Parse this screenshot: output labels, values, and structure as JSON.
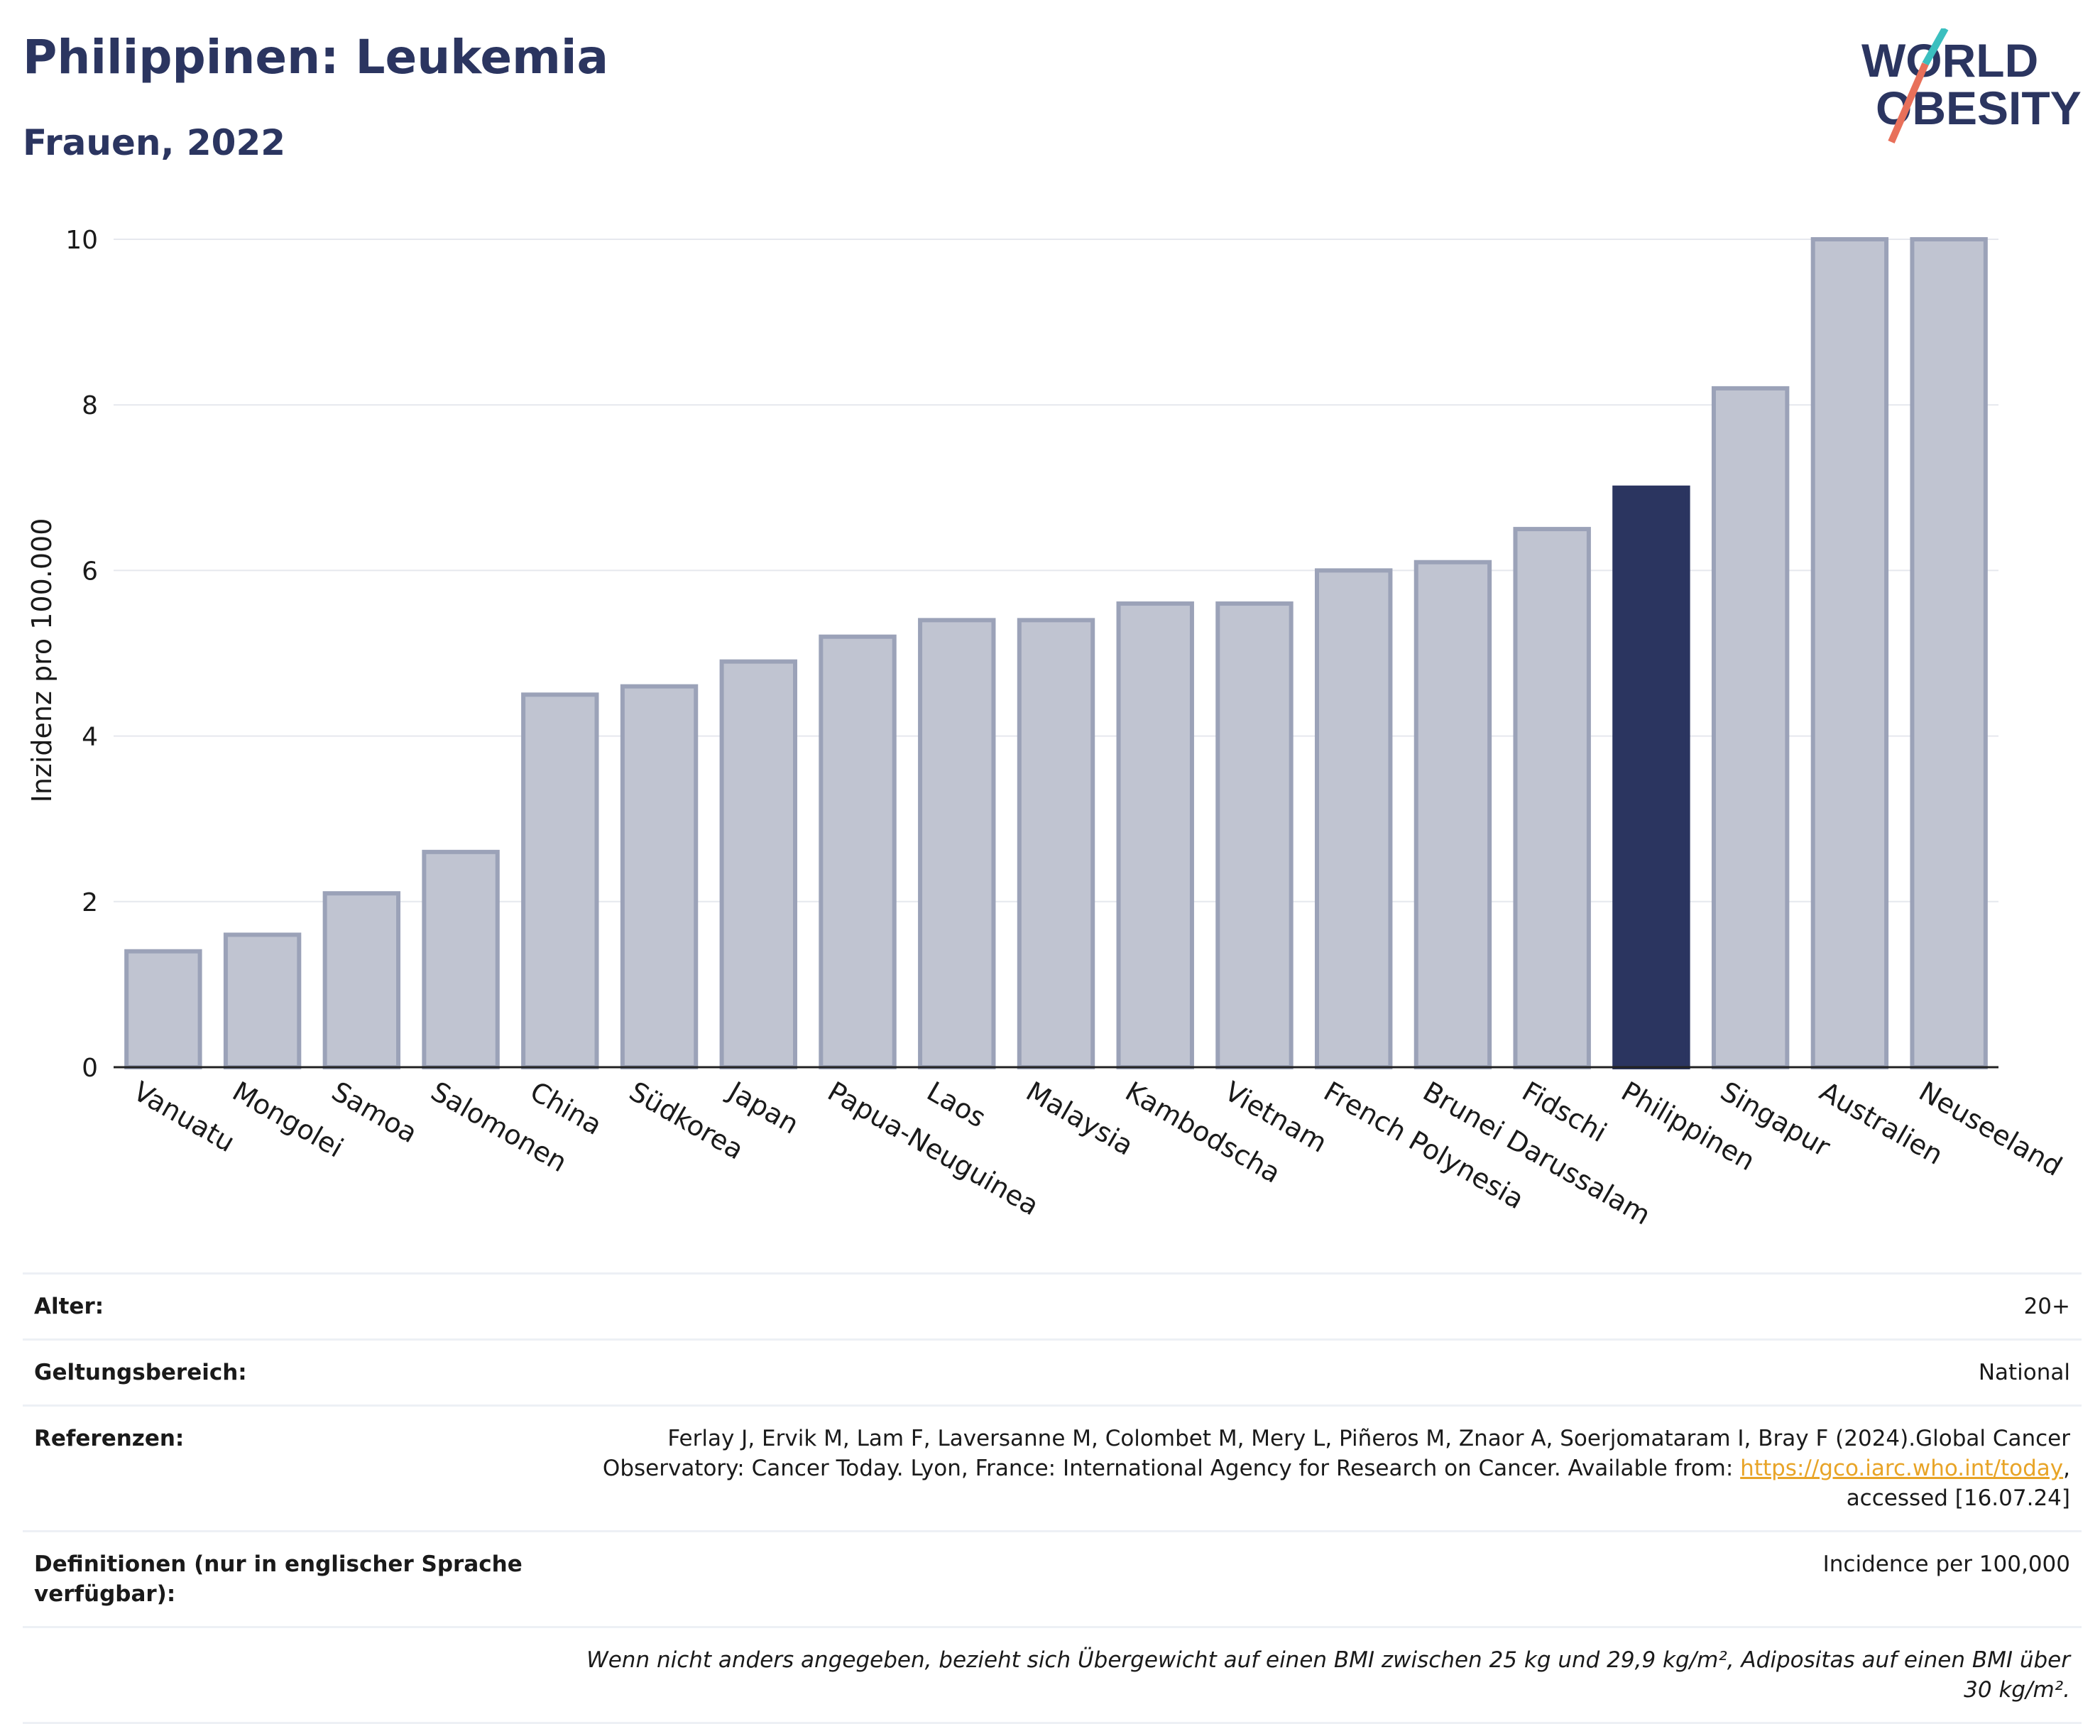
{
  "header": {
    "title": "Philippinen: Leukemia",
    "subtitle": "Frauen, 2022"
  },
  "logo": {
    "line1": "WORLD",
    "line2": "OBESITY",
    "colors": {
      "text": "#2b3560",
      "slash_teal": "#3bbfbf",
      "slash_coral": "#e8705a"
    }
  },
  "chart_data": {
    "type": "bar",
    "title": "Philippinen: Leukemia",
    "subtitle": "Frauen, 2022",
    "ylabel": "Inzidenz pro 100.000",
    "xlabel": "",
    "ylim": [
      0,
      10
    ],
    "yticks": [
      0,
      2,
      4,
      6,
      8,
      10
    ],
    "grid": true,
    "highlight": "Philippinen",
    "colors": {
      "bar": "#c0c4d1",
      "bar_border": "#9ba2b8",
      "highlight": "#2b3560"
    },
    "categories": [
      "Vanuatu",
      "Mongolei",
      "Samoa",
      "Salomonen",
      "China",
      "Südkorea",
      "Japan",
      "Papua-Neuguinea",
      "Laos",
      "Malaysia",
      "Kambodscha",
      "Vietnam",
      "French Polynesia",
      "Brunei Darussalam",
      "Fidschi",
      "Philippinen",
      "Singapur",
      "Australien",
      "Neuseeland"
    ],
    "values": [
      1.4,
      1.6,
      2.1,
      2.6,
      4.5,
      4.6,
      4.9,
      5.2,
      5.4,
      5.4,
      5.6,
      5.6,
      6.0,
      6.1,
      6.5,
      7.0,
      8.2,
      10.0,
      10.0
    ]
  },
  "meta": {
    "rows": [
      {
        "key": "Alter:",
        "value": "20+"
      },
      {
        "key": "Geltungsbereich:",
        "value": "National"
      },
      {
        "key": "Referenzen:",
        "value_pre": "Ferlay J, Ervik M, Lam F, Laversanne M, Colombet M, Mery L, Piñeros M, Znaor A, Soerjomataram I, Bray F (2024).Global Cancer Observatory: Cancer Today. Lyon, France: International Agency for Research on Cancer. Available from: ",
        "link": "https://gco.iarc.who.int/today",
        "value_post": ", accessed [16.07.24]"
      },
      {
        "key": "Definitionen (nur in englischer Sprache verfügbar):",
        "value": "Incidence per 100,000"
      }
    ],
    "note": "Wenn nicht anders angegeben, bezieht sich Übergewicht auf einen BMI zwischen 25 kg und 29,9 kg/m², Adipositas auf einen BMI über 30 kg/m²."
  }
}
